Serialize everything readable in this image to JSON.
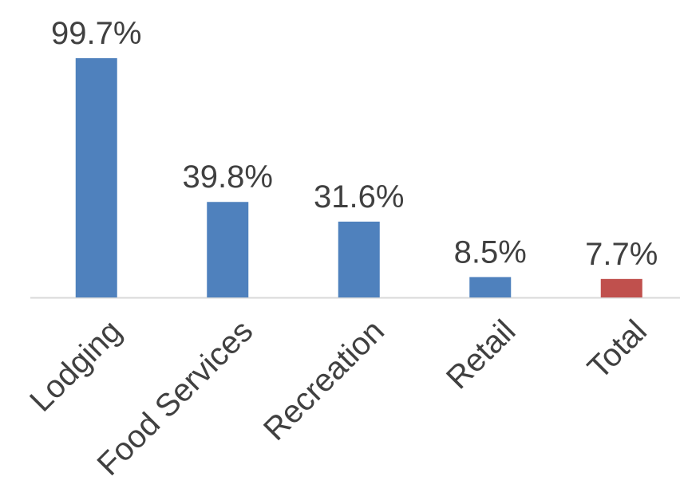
{
  "chart_data": {
    "type": "bar",
    "categories": [
      "Lodging",
      "Food Services",
      "Recreation",
      "Retail",
      "Total"
    ],
    "values": [
      99.7,
      39.8,
      31.6,
      8.5,
      7.7
    ],
    "value_labels": [
      "99.7%",
      "39.8%",
      "31.6%",
      "8.5%",
      "7.7%"
    ],
    "colors": [
      "#4f81bd",
      "#4f81bd",
      "#4f81bd",
      "#4f81bd",
      "#c0504d"
    ]
  }
}
